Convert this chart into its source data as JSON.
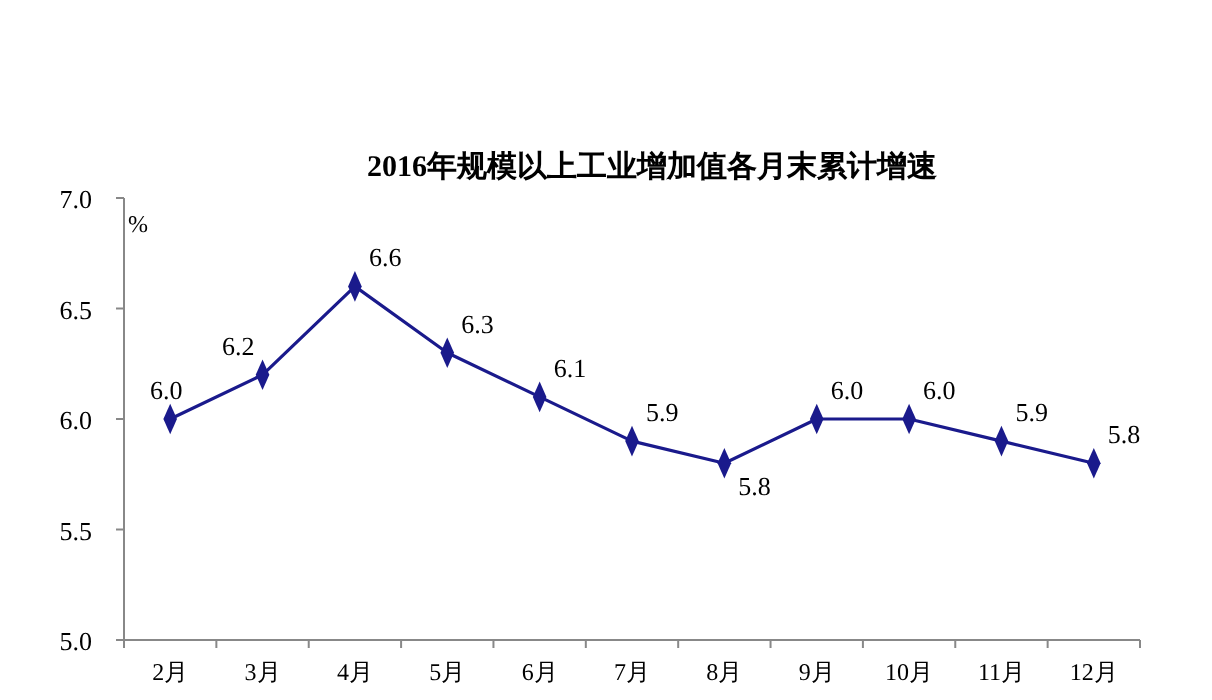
{
  "chart_data": {
    "type": "line",
    "title": "2016年规模以上工业增加值各月末累计增速",
    "ylabel": "%",
    "categories": [
      "2月",
      "3月",
      "4月",
      "5月",
      "6月",
      "7月",
      "8月",
      "9月",
      "10月",
      "11月",
      "12月"
    ],
    "series": [
      {
        "color": "#1a1a8c",
        "values": [
          6.0,
          6.2,
          6.6,
          6.3,
          6.1,
          5.9,
          5.8,
          6.0,
          6.0,
          5.9,
          5.8
        ],
        "value_labels": [
          "6.0",
          "6.2",
          "6.6",
          "6.3",
          "6.1",
          "5.9",
          "5.8",
          "6.0",
          "6.0",
          "5.9",
          "5.8"
        ]
      }
    ],
    "ylim": [
      5.0,
      7.0
    ],
    "yticks": [
      {
        "value": 5,
        "label": "5.0"
      },
      {
        "value": 5.5,
        "label": "5.5"
      },
      {
        "value": 6,
        "label": "6.0"
      },
      {
        "value": 6.5,
        "label": "6.5"
      },
      {
        "value": 7,
        "label": "7.0"
      }
    ],
    "grid": false,
    "marker": "diamond",
    "line_style": "solid"
  }
}
